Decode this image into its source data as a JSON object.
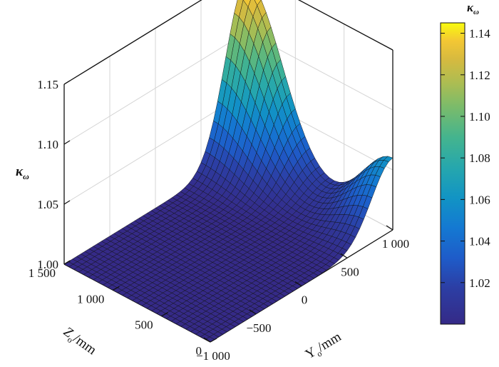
{
  "chart_data": {
    "type": "surface",
    "zlabel": {
      "main": "κ",
      "sub": "ω"
    },
    "xlabel": {
      "main": "Y",
      "sub": "o",
      "unit": "/mm"
    },
    "ylabel": {
      "main": "Z",
      "sub": "o",
      "unit": "/mm"
    },
    "colorbar_title": {
      "main": "κ",
      "sub": "ω"
    },
    "xlim": [
      -1000,
      1000
    ],
    "ylim": [
      0,
      1500
    ],
    "zlim": [
      1.0,
      1.15
    ],
    "x_ticks": [
      -1000,
      -500,
      0,
      500,
      1000
    ],
    "x_tick_labels": [
      "−1 000",
      "−500",
      "0",
      "500",
      "1 000"
    ],
    "y_ticks": [
      0,
      500,
      1000,
      1500
    ],
    "y_tick_labels": [
      "0",
      "500",
      "1 000",
      "1 500"
    ],
    "z_ticks": [
      1.0,
      1.05,
      1.1,
      1.15
    ],
    "z_tick_labels": [
      "1.00",
      "1.05",
      "1.10",
      "1.15"
    ],
    "colorbar_range": [
      1.0,
      1.145
    ],
    "colorbar_ticks": [
      1.02,
      1.04,
      1.06,
      1.08,
      1.1,
      1.12,
      1.14
    ],
    "colorbar_tick_labels": [
      "1.02",
      "1.04",
      "1.06",
      "1.08",
      "1.10",
      "1.12",
      "1.14"
    ],
    "colormap": "parula",
    "grid": true,
    "surface": {
      "x": [
        -1000,
        1000
      ],
      "y": [
        0,
        1500
      ],
      "peaks": [
        {
          "x": 1000,
          "y": 1500,
          "value": 1.145
        },
        {
          "x": 1000,
          "y": 0,
          "value": 1.06
        }
      ],
      "baseline": 1.0
    }
  }
}
